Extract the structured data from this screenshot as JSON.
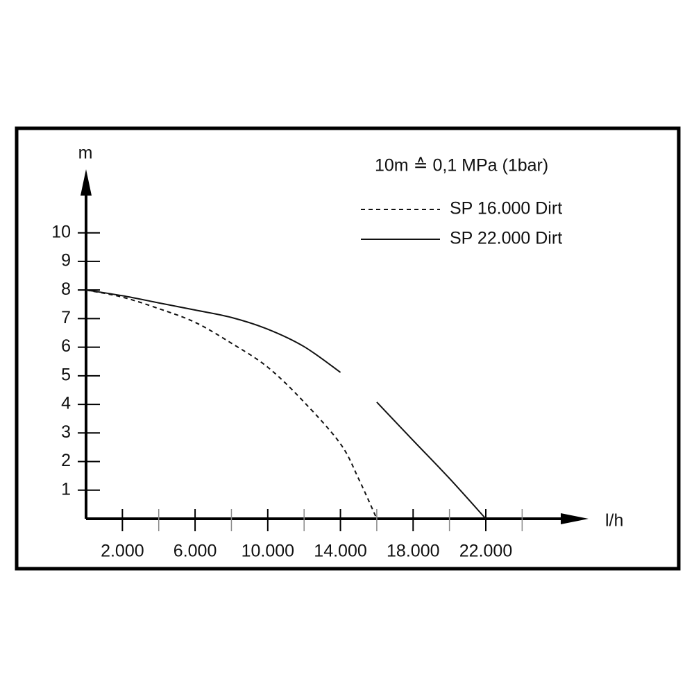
{
  "chart_data": {
    "type": "line",
    "annotation": "10m ≙ 0,1 MPa (1bar)",
    "y_label": "m",
    "x_label": "l/h",
    "xlim": [
      0,
      27500
    ],
    "ylim": [
      0,
      12.2
    ],
    "xticks": [
      {
        "value": 2000,
        "label": "2.000"
      },
      {
        "value": 6000,
        "label": "6.000"
      },
      {
        "value": 10000,
        "label": "10.000"
      },
      {
        "value": 14000,
        "label": "14.000"
      },
      {
        "value": 18000,
        "label": "18.000"
      },
      {
        "value": 22000,
        "label": "22.000"
      }
    ],
    "xminor_ticks": [
      4000,
      8000,
      12000,
      16000,
      20000,
      24000
    ],
    "yticks": [
      1,
      2,
      3,
      4,
      5,
      6,
      7,
      8,
      9,
      10
    ],
    "x": [
      0,
      2000,
      4000,
      6000,
      8000,
      10000,
      12000,
      14000,
      15000,
      16000,
      18000,
      20000,
      22000
    ],
    "series": [
      {
        "name": "SP 16.000 Dirt",
        "color": "#111111",
        "dash": true,
        "values": [
          8,
          7.75,
          7.35,
          6.87,
          6.14,
          5.3,
          4.08,
          2.62,
          1.4,
          0,
          null,
          null,
          null
        ]
      },
      {
        "name": "SP 22.000 Dirt",
        "color": "#111111",
        "dash": false,
        "values": [
          8,
          7.8,
          7.55,
          7.3,
          7.04,
          6.63,
          6.02,
          5.12,
          null,
          4.08,
          2.74,
          1.41,
          0
        ]
      }
    ]
  }
}
